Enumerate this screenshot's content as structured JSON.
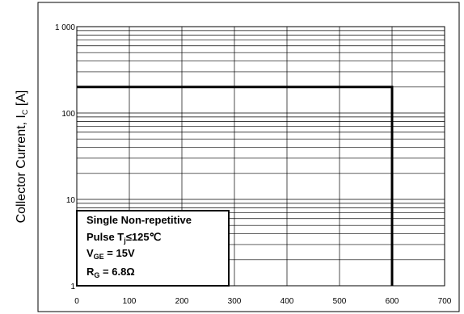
{
  "chart_data": {
    "type": "line",
    "title": "",
    "ylabel": {
      "main": "Collector Current,  I",
      "sub": "C",
      "unit": "  [A]"
    },
    "xlabel": "",
    "xlim": [
      0,
      700
    ],
    "ylim": [
      1,
      1000
    ],
    "yscale": "log",
    "grid": true,
    "x_ticks": [
      "0",
      "100",
      "200",
      "300",
      "400",
      "500",
      "600",
      "700"
    ],
    "y_ticks": [
      "1",
      "10",
      "100",
      "1 000"
    ],
    "series": [
      {
        "x": [
          0,
          600,
          600
        ],
        "y": [
          200,
          200,
          1
        ]
      }
    ],
    "annotation": {
      "line1": "Single Non-repetitive",
      "line2": {
        "pre": "Pulse T",
        "sub": "j",
        "post": "≤125℃"
      },
      "line3": {
        "pre": "V",
        "sub": "GE",
        "post": " = 15V"
      },
      "line4": {
        "pre": "R",
        "sub": "G",
        "post": " = 6.8Ω"
      }
    }
  }
}
